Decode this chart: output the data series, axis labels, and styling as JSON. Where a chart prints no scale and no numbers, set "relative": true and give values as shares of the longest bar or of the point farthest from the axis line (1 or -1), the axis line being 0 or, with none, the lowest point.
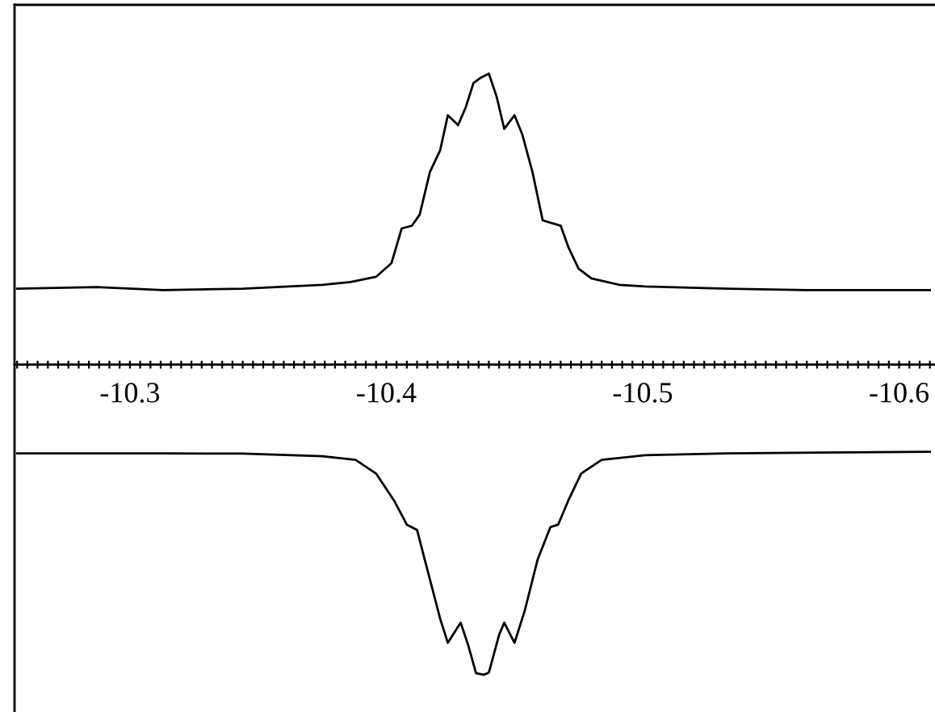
{
  "chart_data": {
    "type": "line",
    "relative": true,
    "xlim": [
      -10.255,
      -10.614
    ],
    "xticks": [
      {
        "value": -10.256,
        "label": null
      },
      {
        "value": -10.26,
        "label": null
      },
      {
        "value": -10.264,
        "label": null
      },
      {
        "value": -10.268,
        "label": null
      },
      {
        "value": -10.272,
        "label": null
      },
      {
        "value": -10.276,
        "label": null
      },
      {
        "value": -10.28,
        "label": null
      },
      {
        "value": -10.284,
        "label": null
      },
      {
        "value": -10.288,
        "label": null
      },
      {
        "value": -10.292,
        "label": null
      },
      {
        "value": -10.296,
        "label": null
      },
      -10.3,
      {
        "value": -10.304,
        "label": null
      },
      {
        "value": -10.308,
        "label": null
      },
      {
        "value": -10.312,
        "label": null
      },
      {
        "value": -10.316,
        "label": null
      },
      {
        "value": -10.32,
        "label": null
      },
      {
        "value": -10.324,
        "label": null
      },
      {
        "value": -10.328,
        "label": null
      },
      {
        "value": -10.332,
        "label": null
      },
      {
        "value": -10.336,
        "label": null
      },
      {
        "value": -10.34,
        "label": null
      },
      {
        "value": -10.344,
        "label": null
      },
      {
        "value": -10.348,
        "label": null
      },
      {
        "value": -10.352,
        "label": null
      },
      {
        "value": -10.356,
        "label": null
      },
      {
        "value": -10.36,
        "label": null
      },
      {
        "value": -10.364,
        "label": null
      },
      {
        "value": -10.368,
        "label": null
      },
      {
        "value": -10.372,
        "label": null
      },
      {
        "value": -10.376,
        "label": null
      },
      {
        "value": -10.38,
        "label": null
      },
      {
        "value": -10.384,
        "label": null
      },
      {
        "value": -10.388,
        "label": null
      },
      {
        "value": -10.392,
        "label": null
      },
      {
        "value": -10.396,
        "label": null
      },
      -10.4,
      {
        "value": -10.404,
        "label": null
      },
      {
        "value": -10.408,
        "label": null
      },
      {
        "value": -10.412,
        "label": null
      },
      {
        "value": -10.416,
        "label": null
      },
      {
        "value": -10.42,
        "label": null
      },
      {
        "value": -10.424,
        "label": null
      },
      {
        "value": -10.428,
        "label": null
      },
      {
        "value": -10.432,
        "label": null
      },
      {
        "value": -10.436,
        "label": null
      },
      {
        "value": -10.44,
        "label": null
      },
      {
        "value": -10.444,
        "label": null
      },
      {
        "value": -10.448,
        "label": null
      },
      {
        "value": -10.452,
        "label": null
      },
      {
        "value": -10.456,
        "label": null
      },
      {
        "value": -10.46,
        "label": null
      },
      {
        "value": -10.464,
        "label": null
      },
      {
        "value": -10.468,
        "label": null
      },
      {
        "value": -10.472,
        "label": null
      },
      {
        "value": -10.476,
        "label": null
      },
      {
        "value": -10.48,
        "label": null
      },
      {
        "value": -10.484,
        "label": null
      },
      {
        "value": -10.488,
        "label": null
      },
      {
        "value": -10.492,
        "label": null
      },
      {
        "value": -10.496,
        "label": null
      },
      -10.5,
      {
        "value": -10.504,
        "label": null
      },
      {
        "value": -10.508,
        "label": null
      },
      {
        "value": -10.512,
        "label": null
      },
      {
        "value": -10.516,
        "label": null
      },
      {
        "value": -10.52,
        "label": null
      },
      {
        "value": -10.524,
        "label": null
      },
      {
        "value": -10.528,
        "label": null
      },
      {
        "value": -10.532,
        "label": null
      },
      {
        "value": -10.536,
        "label": null
      },
      {
        "value": -10.54,
        "label": null
      },
      {
        "value": -10.544,
        "label": null
      },
      {
        "value": -10.548,
        "label": null
      },
      {
        "value": -10.552,
        "label": null
      },
      {
        "value": -10.556,
        "label": null
      },
      {
        "value": -10.56,
        "label": null
      },
      {
        "value": -10.564,
        "label": null
      },
      {
        "value": -10.568,
        "label": null
      },
      {
        "value": -10.572,
        "label": null
      },
      {
        "value": -10.576,
        "label": null
      },
      {
        "value": -10.58,
        "label": null
      },
      {
        "value": -10.584,
        "label": null
      },
      {
        "value": -10.588,
        "label": null
      },
      {
        "value": -10.592,
        "label": null
      },
      {
        "value": -10.596,
        "label": null
      },
      -10.6,
      {
        "value": -10.604,
        "label": null
      },
      {
        "value": -10.608,
        "label": null
      },
      {
        "value": -10.612,
        "label": null
      }
    ],
    "grid": false,
    "marker": "none",
    "line_style": "solid",
    "series": [
      {
        "color": "#000000",
        "x": [
          -10.256,
          -10.287,
          -10.313,
          -10.344,
          -10.375,
          -10.386,
          -10.396,
          -10.402,
          -10.406,
          -10.41,
          -10.413,
          -10.417,
          -10.421,
          -10.424,
          -10.428,
          -10.431,
          -10.434,
          -10.437,
          -10.44,
          -10.443,
          -10.446,
          -10.45,
          -10.453,
          -10.457,
          -10.461,
          -10.468,
          -10.471,
          -10.475,
          -10.48,
          -10.491,
          -10.501,
          -10.533,
          -10.564,
          -10.612
        ],
        "values": [
          0.245,
          0.25,
          0.24,
          0.245,
          0.257,
          0.266,
          0.283,
          0.327,
          0.439,
          0.448,
          0.483,
          0.621,
          0.691,
          0.804,
          0.772,
          0.83,
          0.908,
          0.926,
          0.938,
          0.865,
          0.76,
          0.804,
          0.743,
          0.621,
          0.465,
          0.448,
          0.379,
          0.309,
          0.278,
          0.257,
          0.252,
          0.245,
          0.24,
          0.24
        ]
      },
      {
        "color": "#000000",
        "x": [
          -10.256,
          -10.313,
          -10.344,
          -10.375,
          -10.388,
          -10.396,
          -10.403,
          -10.408,
          -10.412,
          -10.415,
          -10.421,
          -10.424,
          -10.429,
          -10.432,
          -10.435,
          -10.438,
          -10.44,
          -10.444,
          -10.446,
          -10.45,
          -10.454,
          -10.459,
          -10.464,
          -10.467,
          -10.471,
          -10.476,
          -10.484,
          -10.501,
          -10.533,
          -10.612
        ],
        "values": [
          -0.286,
          -0.286,
          -0.287,
          -0.295,
          -0.307,
          -0.351,
          -0.438,
          -0.516,
          -0.533,
          -0.629,
          -0.819,
          -0.897,
          -0.832,
          -0.906,
          -0.995,
          -1,
          -0.993,
          -0.871,
          -0.832,
          -0.897,
          -0.793,
          -0.629,
          -0.524,
          -0.516,
          -0.438,
          -0.351,
          -0.307,
          -0.292,
          -0.286,
          -0.281
        ]
      }
    ]
  }
}
